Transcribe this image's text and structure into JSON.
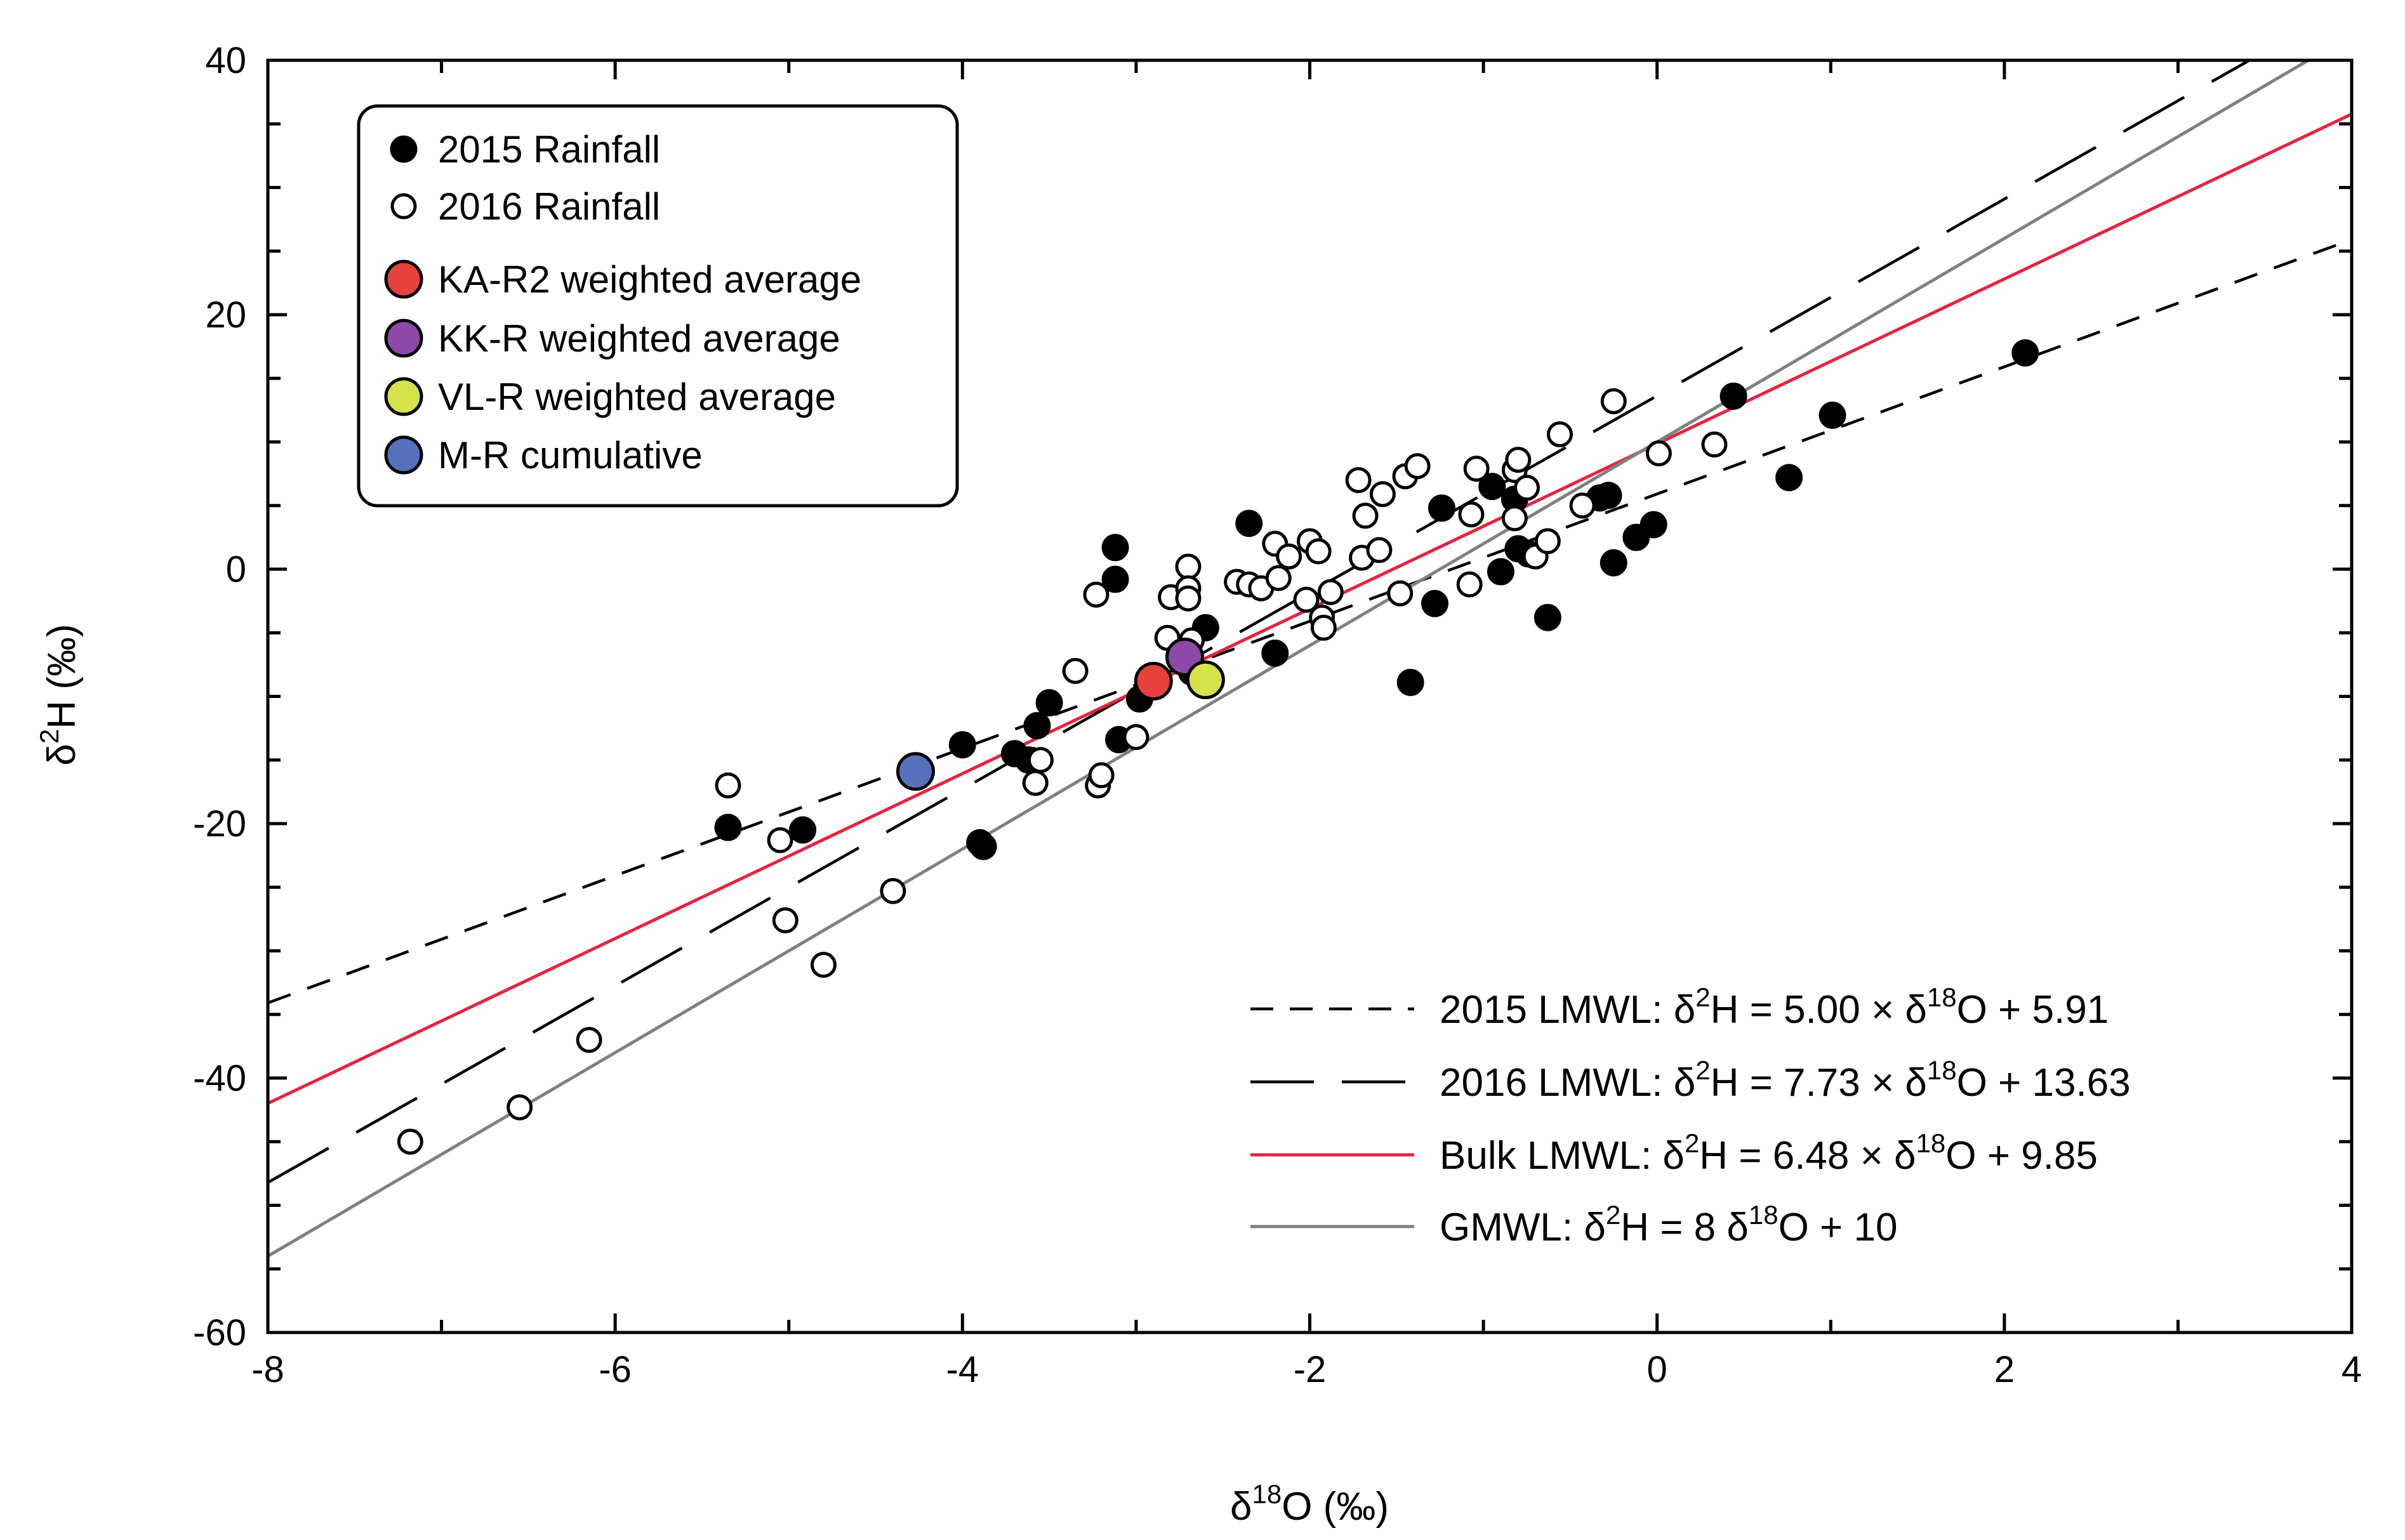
{
  "chart_data": {
    "type": "scatter",
    "title": "",
    "xlabel": "δ18O (‰)",
    "ylabel": "δ2H (‰)",
    "xlim": [
      -8,
      4
    ],
    "ylim": [
      -60,
      40
    ],
    "x_ticks": [
      -8,
      -6,
      -4,
      -2,
      0,
      2,
      4
    ],
    "x_tick_labels": [
      "-8",
      "-6",
      "-4",
      "-2",
      "0",
      "2",
      "4"
    ],
    "y_ticks": [
      -60,
      -40,
      -20,
      0,
      20,
      40
    ],
    "y_tick_labels": [
      "-60",
      "-40",
      "-20",
      "0",
      "20",
      "40"
    ],
    "grid": false,
    "legend_position": "top-left",
    "series": [
      {
        "name": "2015 Rainfall",
        "marker": "filled-circle",
        "color": "#000000",
        "points": [
          {
            "x": -5.35,
            "y": -20.3
          },
          {
            "x": -4.92,
            "y": -20.5
          },
          {
            "x": -4.0,
            "y": -13.8
          },
          {
            "x": -3.88,
            "y": -21.8
          },
          {
            "x": -3.9,
            "y": -21.5
          },
          {
            "x": -3.7,
            "y": -14.5
          },
          {
            "x": -3.62,
            "y": -15.0
          },
          {
            "x": -3.57,
            "y": -12.3
          },
          {
            "x": -3.5,
            "y": -10.5
          },
          {
            "x": -3.12,
            "y": 1.7
          },
          {
            "x": -3.12,
            "y": -0.8
          },
          {
            "x": -3.1,
            "y": -13.4
          },
          {
            "x": -2.98,
            "y": -10.2
          },
          {
            "x": -2.68,
            "y": -8.1
          },
          {
            "x": -2.6,
            "y": -4.6
          },
          {
            "x": -2.35,
            "y": 3.6
          },
          {
            "x": -2.2,
            "y": -6.6
          },
          {
            "x": -1.42,
            "y": -8.9
          },
          {
            "x": -1.28,
            "y": -2.7
          },
          {
            "x": -1.24,
            "y": 4.8
          },
          {
            "x": -0.95,
            "y": 6.5
          },
          {
            "x": -0.9,
            "y": -0.2
          },
          {
            "x": -0.82,
            "y": 5.5
          },
          {
            "x": -0.8,
            "y": 1.6
          },
          {
            "x": -0.74,
            "y": 1.2
          },
          {
            "x": -0.63,
            "y": -3.8
          },
          {
            "x": -0.33,
            "y": 5.6
          },
          {
            "x": -0.28,
            "y": 5.8
          },
          {
            "x": -0.25,
            "y": 0.5
          },
          {
            "x": -0.12,
            "y": 2.5
          },
          {
            "x": -0.02,
            "y": 3.5
          },
          {
            "x": 0.44,
            "y": 13.6
          },
          {
            "x": 0.76,
            "y": 7.2
          },
          {
            "x": 1.01,
            "y": 12.1
          },
          {
            "x": 2.12,
            "y": 17.0
          }
        ]
      },
      {
        "name": "2016 Rainfall",
        "marker": "open-circle",
        "color": "#000000",
        "points": [
          {
            "x": -7.18,
            "y": -45.0
          },
          {
            "x": -6.55,
            "y": -42.3
          },
          {
            "x": -6.15,
            "y": -37.0
          },
          {
            "x": -5.35,
            "y": -17.0
          },
          {
            "x": -5.05,
            "y": -21.3
          },
          {
            "x": -5.02,
            "y": -27.6
          },
          {
            "x": -4.8,
            "y": -31.1
          },
          {
            "x": -4.4,
            "y": -25.3
          },
          {
            "x": -3.58,
            "y": -16.8
          },
          {
            "x": -3.55,
            "y": -15.0
          },
          {
            "x": -3.35,
            "y": -8.0
          },
          {
            "x": -3.23,
            "y": -2.0
          },
          {
            "x": -3.22,
            "y": -17.0
          },
          {
            "x": -3.2,
            "y": -16.2
          },
          {
            "x": -3.0,
            "y": -13.2
          },
          {
            "x": -2.92,
            "y": -9.1
          },
          {
            "x": -2.82,
            "y": -5.4
          },
          {
            "x": -2.8,
            "y": -2.2
          },
          {
            "x": -2.7,
            "y": 0.2
          },
          {
            "x": -2.7,
            "y": -1.5
          },
          {
            "x": -2.7,
            "y": -2.3
          },
          {
            "x": -2.68,
            "y": -5.6
          },
          {
            "x": -2.42,
            "y": -1.0
          },
          {
            "x": -2.35,
            "y": -1.2
          },
          {
            "x": -2.28,
            "y": -1.5
          },
          {
            "x": -2.2,
            "y": 2.0
          },
          {
            "x": -2.18,
            "y": -0.7
          },
          {
            "x": -2.12,
            "y": 1.0
          },
          {
            "x": -2.02,
            "y": -2.4
          },
          {
            "x": -2.0,
            "y": 2.2
          },
          {
            "x": -1.95,
            "y": 1.4
          },
          {
            "x": -1.93,
            "y": -3.8
          },
          {
            "x": -1.92,
            "y": -4.6
          },
          {
            "x": -1.88,
            "y": -1.8
          },
          {
            "x": -1.72,
            "y": 7.0
          },
          {
            "x": -1.7,
            "y": 0.9
          },
          {
            "x": -1.68,
            "y": 4.2
          },
          {
            "x": -1.6,
            "y": 1.5
          },
          {
            "x": -1.58,
            "y": 5.9
          },
          {
            "x": -1.48,
            "y": -1.9
          },
          {
            "x": -1.45,
            "y": 7.3
          },
          {
            "x": -1.38,
            "y": 8.1
          },
          {
            "x": -1.08,
            "y": -1.2
          },
          {
            "x": -1.07,
            "y": 4.3
          },
          {
            "x": -1.04,
            "y": 7.9
          },
          {
            "x": -0.82,
            "y": 4.0
          },
          {
            "x": -0.82,
            "y": 7.8
          },
          {
            "x": -0.8,
            "y": 8.6
          },
          {
            "x": -0.75,
            "y": 6.4
          },
          {
            "x": -0.7,
            "y": 1.0
          },
          {
            "x": -0.63,
            "y": 2.2
          },
          {
            "x": -0.56,
            "y": 10.6
          },
          {
            "x": -0.43,
            "y": 5.0
          },
          {
            "x": -0.25,
            "y": 13.2
          },
          {
            "x": 0.01,
            "y": 9.1
          },
          {
            "x": 0.33,
            "y": 9.8
          }
        ]
      }
    ],
    "highlight_points": [
      {
        "name": "KA-R2 weighted average",
        "x": -2.9,
        "y": -8.8,
        "color": "#e8413c"
      },
      {
        "name": "KK-R weighted average",
        "x": -2.72,
        "y": -6.9,
        "color": "#8d48a8"
      },
      {
        "name": "VL-R weighted average",
        "x": -2.6,
        "y": -8.7,
        "color": "#d6e24a"
      },
      {
        "name": "M-R cumulative",
        "x": -4.27,
        "y": -15.9,
        "color": "#5671bb"
      }
    ],
    "lines": [
      {
        "name": "2015 LMWL",
        "slope": 5.0,
        "intercept": 5.91,
        "style": "short-dash",
        "color": "#000000"
      },
      {
        "name": "2016 LMWL",
        "slope": 7.73,
        "intercept": 13.63,
        "style": "long-dash",
        "color": "#000000"
      },
      {
        "name": "Bulk LMWL",
        "slope": 6.48,
        "intercept": 9.85,
        "style": "solid",
        "color": "#e5243f"
      },
      {
        "name": "GMWL",
        "slope": 8,
        "intercept": 10,
        "style": "solid",
        "color": "#808080"
      }
    ],
    "line_legend": [
      {
        "lhs": "2015 LMWL: δ",
        "sup1": "2",
        "mid": "H = 5.00 × δ",
        "sup2": "18",
        "rhs": "O + 5.91"
      },
      {
        "lhs": "2016 LMWL: δ",
        "sup1": "2",
        "mid": "H = 7.73 × δ",
        "sup2": "18",
        "rhs": "O + 13.63"
      },
      {
        "lhs": "Bulk LMWL: δ",
        "sup1": "2",
        "mid": "H = 6.48 × δ",
        "sup2": "18",
        "rhs": "O + 9.85"
      },
      {
        "lhs": "GMWL: δ",
        "sup1": "2",
        "mid": "H = 8 δ",
        "sup2": "18",
        "rhs": "O + 10"
      }
    ],
    "axis_text": {
      "x_title_pre": "δ",
      "x_title_sup": "18",
      "x_title_post": "O (‰)",
      "y_title_pre": "δ",
      "y_title_sup": "2",
      "y_title_post": "H (‰)"
    }
  }
}
